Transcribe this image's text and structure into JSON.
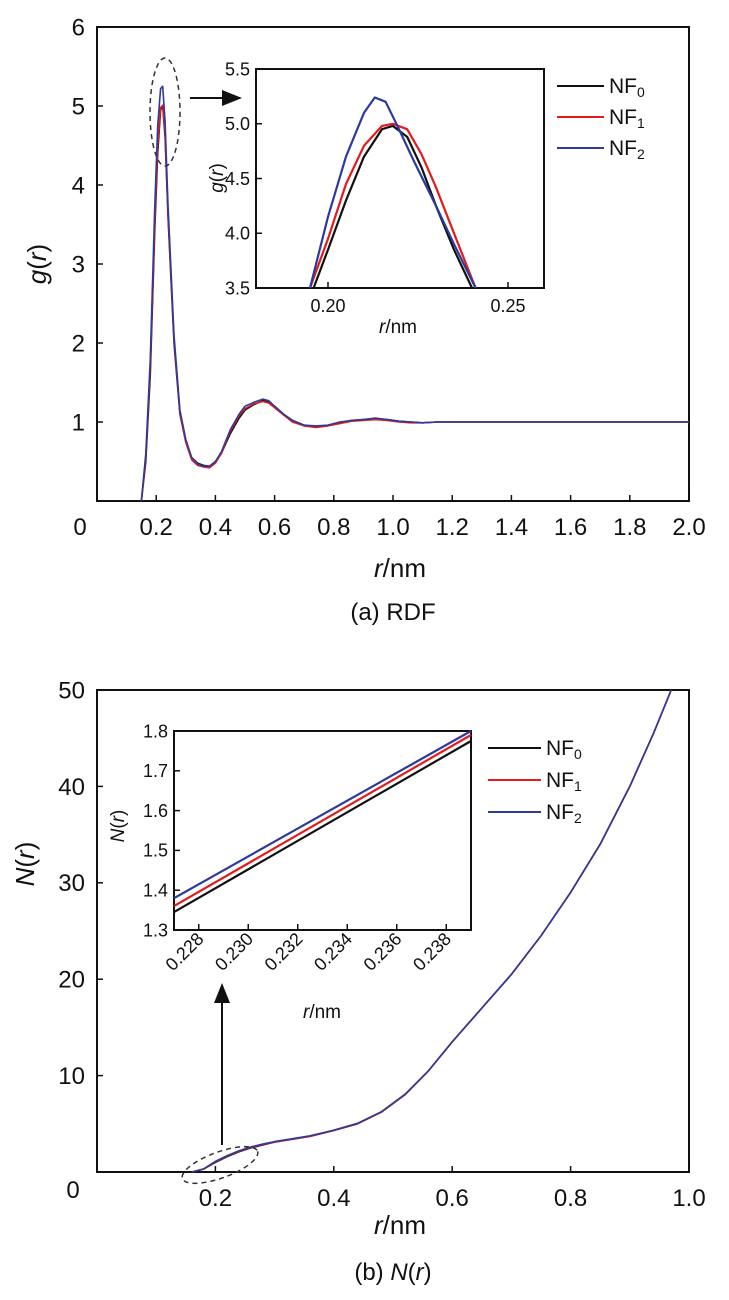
{
  "chart_data": [
    {
      "type": "line",
      "title": "(a) RDF",
      "xlabel_italic": "r",
      "xlabel_unit": "/nm",
      "ylabel": "g(r)",
      "xlim": [
        0,
        2.0
      ],
      "ylim": [
        0,
        6
      ],
      "x_ticks": [
        "0.2",
        "0.4",
        "0.6",
        "0.8",
        "1.0",
        "1.2",
        "1.4",
        "1.6",
        "1.8",
        "2.0"
      ],
      "y_ticks": [
        "1",
        "2",
        "3",
        "4",
        "5",
        "6"
      ],
      "origin_label": "0",
      "legend": [
        "NF0",
        "NF1",
        "NF2"
      ],
      "series": [
        {
          "name": "NF0",
          "color": "#111111",
          "x": [
            0.15,
            0.165,
            0.18,
            0.195,
            0.205,
            0.215,
            0.222,
            0.23,
            0.24,
            0.26,
            0.28,
            0.3,
            0.32,
            0.34,
            0.36,
            0.38,
            0.4,
            0.42,
            0.45,
            0.48,
            0.5,
            0.53,
            0.56,
            0.58,
            0.6,
            0.63,
            0.66,
            0.7,
            0.74,
            0.78,
            0.82,
            0.86,
            0.9,
            0.94,
            0.98,
            1.02,
            1.06,
            1.1,
            1.15,
            1.2,
            1.3,
            1.4,
            1.5,
            1.6,
            1.7,
            1.8,
            1.9,
            2.0
          ],
          "y": [
            0.0,
            0.5,
            1.6,
            3.4,
            4.4,
            4.95,
            5.0,
            4.6,
            3.6,
            2.0,
            1.1,
            0.75,
            0.55,
            0.48,
            0.45,
            0.44,
            0.5,
            0.6,
            0.85,
            1.05,
            1.15,
            1.22,
            1.27,
            1.25,
            1.2,
            1.1,
            1.02,
            0.96,
            0.94,
            0.96,
            0.99,
            1.02,
            1.03,
            1.04,
            1.03,
            1.01,
            1.0,
            0.99,
            1.0,
            1.0,
            1.0,
            1.0,
            1.0,
            1.0,
            1.0,
            1.0,
            1.0,
            1.0
          ]
        },
        {
          "name": "NF1",
          "color": "#e41a1c",
          "x": [
            0.15,
            0.165,
            0.18,
            0.195,
            0.205,
            0.215,
            0.222,
            0.23,
            0.24,
            0.26,
            0.28,
            0.3,
            0.32,
            0.34,
            0.36,
            0.38,
            0.4,
            0.42,
            0.45,
            0.48,
            0.5,
            0.53,
            0.56,
            0.58,
            0.6,
            0.63,
            0.66,
            0.7,
            0.74,
            0.78,
            0.82,
            0.86,
            0.9,
            0.94,
            0.98,
            1.02,
            1.06,
            1.1,
            1.15,
            1.2,
            1.3,
            1.4,
            1.5,
            1.6,
            1.7,
            1.8,
            1.9,
            2.0
          ],
          "y": [
            0.0,
            0.55,
            1.7,
            3.5,
            4.5,
            4.98,
            5.01,
            4.65,
            3.65,
            2.05,
            1.12,
            0.74,
            0.52,
            0.45,
            0.43,
            0.42,
            0.48,
            0.6,
            0.88,
            1.08,
            1.17,
            1.23,
            1.26,
            1.24,
            1.18,
            1.09,
            1.0,
            0.95,
            0.93,
            0.95,
            0.98,
            1.01,
            1.02,
            1.03,
            1.02,
            1.0,
            0.99,
            0.99,
            1.0,
            1.0,
            1.0,
            1.0,
            1.0,
            1.0,
            1.0,
            1.0,
            1.0,
            1.0
          ]
        },
        {
          "name": "NF2",
          "color": "#2b3a9c",
          "x": [
            0.15,
            0.165,
            0.18,
            0.195,
            0.205,
            0.215,
            0.222,
            0.23,
            0.24,
            0.26,
            0.28,
            0.3,
            0.32,
            0.34,
            0.36,
            0.38,
            0.4,
            0.42,
            0.45,
            0.48,
            0.5,
            0.53,
            0.56,
            0.58,
            0.6,
            0.63,
            0.66,
            0.7,
            0.74,
            0.78,
            0.82,
            0.86,
            0.9,
            0.94,
            0.98,
            1.02,
            1.06,
            1.1,
            1.15,
            1.2,
            1.3,
            1.4,
            1.5,
            1.6,
            1.7,
            1.8,
            1.9,
            2.0
          ],
          "y": [
            0.0,
            0.6,
            1.8,
            3.7,
            4.75,
            5.22,
            5.25,
            4.8,
            3.75,
            2.1,
            1.15,
            0.78,
            0.55,
            0.47,
            0.44,
            0.44,
            0.5,
            0.62,
            0.9,
            1.1,
            1.2,
            1.25,
            1.29,
            1.27,
            1.2,
            1.1,
            1.02,
            0.96,
            0.95,
            0.96,
            1.0,
            1.02,
            1.03,
            1.05,
            1.03,
            1.01,
            1.0,
            0.99,
            1.0,
            1.0,
            1.0,
            1.0,
            1.0,
            1.0,
            1.0,
            1.0,
            1.0,
            1.0
          ]
        }
      ],
      "inset": {
        "xlabel_italic": "r",
        "xlabel_unit": "/nm",
        "ylabel": "g(r)",
        "xlim": [
          0.18,
          0.26
        ],
        "ylim": [
          3.5,
          5.5
        ],
        "x_ticks": [
          "0.20",
          "0.25"
        ],
        "y_ticks": [
          "3.5",
          "4.0",
          "4.5",
          "5.0",
          "5.5"
        ],
        "series": [
          {
            "name": "NF0",
            "x": [
              0.196,
              0.2,
              0.205,
              0.21,
              0.215,
              0.218,
              0.222,
              0.226,
              0.23,
              0.235,
              0.24
            ],
            "y": [
              3.5,
              3.85,
              4.3,
              4.7,
              4.95,
              4.98,
              4.88,
              4.6,
              4.25,
              3.85,
              3.5
            ]
          },
          {
            "name": "NF1",
            "x": [
              0.195,
              0.2,
              0.205,
              0.21,
              0.215,
              0.218,
              0.222,
              0.226,
              0.23,
              0.235,
              0.241
            ],
            "y": [
              3.5,
              3.95,
              4.45,
              4.8,
              4.98,
              5.0,
              4.95,
              4.72,
              4.42,
              4.0,
              3.5
            ]
          },
          {
            "name": "NF2",
            "x": [
              0.195,
              0.2,
              0.205,
              0.21,
              0.213,
              0.216,
              0.219,
              0.224,
              0.23,
              0.235,
              0.241
            ],
            "y": [
              3.5,
              4.15,
              4.7,
              5.1,
              5.24,
              5.2,
              5.0,
              4.65,
              4.25,
              3.9,
              3.5
            ]
          }
        ]
      }
    },
    {
      "type": "line",
      "title_prefix": "(b) ",
      "title_italic": "N",
      "title_suffix": "(",
      "title_var": "r",
      "title_close": ")",
      "xlabel_italic": "r",
      "xlabel_unit": "/nm",
      "ylabel": "N(r)",
      "xlim": [
        0,
        1.0
      ],
      "ylim": [
        0,
        50
      ],
      "x_ticks": [
        "0.2",
        "0.4",
        "0.6",
        "0.8",
        "1.0"
      ],
      "y_ticks": [
        "10",
        "20",
        "30",
        "40",
        "50"
      ],
      "origin_label": "0",
      "legend": [
        "NF0",
        "NF1",
        "NF2"
      ],
      "series": [
        {
          "name": "NF0",
          "color": "#111111",
          "x": [
            0.16,
            0.18,
            0.2,
            0.22,
            0.24,
            0.26,
            0.28,
            0.3,
            0.33,
            0.36,
            0.4,
            0.44,
            0.48,
            0.52,
            0.56,
            0.6,
            0.65,
            0.7,
            0.75,
            0.8,
            0.85,
            0.9,
            0.94,
            0.97
          ],
          "y": [
            0.0,
            0.3,
            1.0,
            1.6,
            2.1,
            2.5,
            2.8,
            3.1,
            3.4,
            3.7,
            4.3,
            5.0,
            6.2,
            8.0,
            10.5,
            13.5,
            17.0,
            20.5,
            24.5,
            29.0,
            34.0,
            40.0,
            45.5,
            50.0
          ]
        },
        {
          "name": "NF1",
          "color": "#e41a1c",
          "x": [
            0.16,
            0.18,
            0.2,
            0.22,
            0.24,
            0.26,
            0.28,
            0.3,
            0.33,
            0.36,
            0.4,
            0.44,
            0.48,
            0.52,
            0.56,
            0.6,
            0.65,
            0.7,
            0.75,
            0.8,
            0.85,
            0.9,
            0.94,
            0.97
          ],
          "y": [
            0.0,
            0.3,
            1.05,
            1.65,
            2.15,
            2.55,
            2.85,
            3.1,
            3.4,
            3.7,
            4.3,
            5.0,
            6.2,
            8.0,
            10.5,
            13.5,
            17.0,
            20.5,
            24.5,
            29.0,
            34.0,
            40.0,
            45.5,
            50.0
          ]
        },
        {
          "name": "NF2",
          "color": "#2b3a9c",
          "x": [
            0.16,
            0.18,
            0.2,
            0.22,
            0.24,
            0.26,
            0.28,
            0.3,
            0.33,
            0.36,
            0.4,
            0.44,
            0.48,
            0.52,
            0.56,
            0.6,
            0.65,
            0.7,
            0.75,
            0.8,
            0.85,
            0.9,
            0.94,
            0.97
          ],
          "y": [
            0.0,
            0.32,
            1.1,
            1.7,
            2.2,
            2.6,
            2.9,
            3.15,
            3.45,
            3.75,
            4.35,
            5.05,
            6.25,
            8.05,
            10.5,
            13.5,
            17.0,
            20.5,
            24.5,
            29.0,
            34.0,
            40.0,
            45.5,
            50.0
          ]
        }
      ],
      "inset": {
        "xlabel_italic": "r",
        "xlabel_unit": "/nm",
        "ylabel": "N(r)",
        "xlim": [
          0.227,
          0.239
        ],
        "ylim": [
          1.3,
          1.8
        ],
        "x_ticks": [
          "0.228",
          "0.230",
          "0.232",
          "0.234",
          "0.236",
          "0.238"
        ],
        "y_ticks": [
          "1.3",
          "1.4",
          "1.5",
          "1.6",
          "1.7",
          "1.8"
        ],
        "series": [
          {
            "name": "NF0",
            "x": [
              0.227,
              0.239
            ],
            "y": [
              1.345,
              1.775
            ]
          },
          {
            "name": "NF1",
            "x": [
              0.227,
              0.239
            ],
            "y": [
              1.36,
              1.79
            ]
          },
          {
            "name": "NF2",
            "x": [
              0.227,
              0.239
            ],
            "y": [
              1.38,
              1.8
            ]
          }
        ]
      }
    }
  ]
}
